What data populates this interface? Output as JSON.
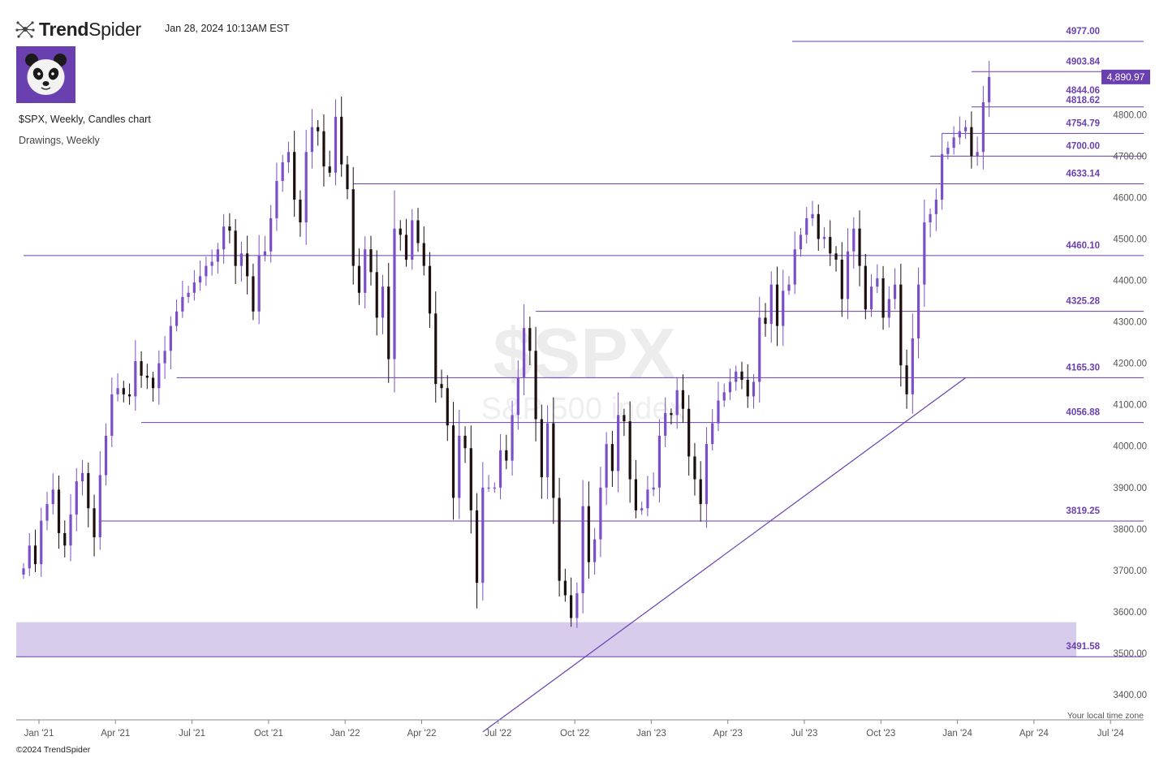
{
  "header": {
    "brand_bold": "Trend",
    "brand_light": "Spider",
    "datetime": "Jan 28, 2024 10:13AM EST",
    "chart_title": "$SPX, Weekly, Candles chart",
    "chart_subtitle": "Drawings, Weekly",
    "watermark_symbol": "$SPX",
    "watermark_name": "S&P 500 index",
    "timezone_note": "Your local time zone",
    "copyright": "©2024 TrendSpider"
  },
  "colors": {
    "accent": "#6a3fb0",
    "bull": "#7b4fc8",
    "bear": "#1e0f0f",
    "zone": "#d8ccec"
  },
  "icons": [
    "trendspider-logo-icon",
    "panda-avatar-icon"
  ],
  "chart_data": {
    "type": "candlestick",
    "timeframe": "Weekly",
    "ylim": [
      3320,
      5010
    ],
    "y_ticks": [
      3400,
      3500,
      3600,
      3700,
      3800,
      3900,
      4000,
      4100,
      4200,
      4300,
      4400,
      4500,
      4600,
      4700,
      4800,
      4900
    ],
    "y_tick_labels": [
      "3400.00",
      "3500.00",
      "3600.00",
      "3700.00",
      "3800.00",
      "3900.00",
      "4000.00",
      "4100.00",
      "4200.00",
      "4300.00",
      "4400.00",
      "4500.00",
      "4600.00",
      "4700.00",
      "4800.00",
      "4900.00"
    ],
    "x_ticks": [
      "Jan '21",
      "Apr '21",
      "Jul '21",
      "Oct '21",
      "Jan '22",
      "Apr '22",
      "Jul '22",
      "Oct '22",
      "Jan '23",
      "Apr '23",
      "Jul '23",
      "Oct '23",
      "Jan '24",
      "Apr '24",
      "Jul '24"
    ],
    "x_tick_weeks": [
      1,
      14,
      27,
      40,
      53,
      66,
      79,
      92,
      105,
      118,
      131,
      144,
      157,
      170,
      183
    ],
    "last_price": 4890.97,
    "last_price_label": "4,890.97",
    "closes": [
      3705,
      3760,
      3715,
      3820,
      3860,
      3895,
      3790,
      3760,
      3835,
      3915,
      3935,
      3850,
      3780,
      3930,
      4025,
      4125,
      4140,
      4125,
      4120,
      4205,
      4170,
      4165,
      4140,
      4200,
      4230,
      4290,
      4325,
      4360,
      4370,
      4395,
      4410,
      4435,
      4445,
      4475,
      4530,
      4520,
      4435,
      4465,
      4410,
      4325,
      4460,
      4470,
      4550,
      4640,
      4685,
      4710,
      4595,
      4540,
      4710,
      4770,
      4760,
      4675,
      4660,
      4795,
      4680,
      4620,
      4435,
      4370,
      4475,
      4420,
      4310,
      4385,
      4210,
      4525,
      4510,
      4450,
      4545,
      4490,
      4435,
      4320,
      4150,
      4140,
      4050,
      3875,
      4025,
      3995,
      3845,
      3670,
      3900,
      3900,
      3900,
      3990,
      3965,
      4075,
      4165,
      4285,
      4230,
      4065,
      3925,
      4055,
      3875,
      3675,
      3640,
      3585,
      3645,
      3855,
      3720,
      3775,
      3900,
      4005,
      3940,
      4075,
      4060,
      3920,
      3845,
      3850,
      3895,
      3900,
      4025,
      4080,
      4075,
      4135,
      4090,
      3975,
      3920,
      3860,
      4005,
      4055,
      4110,
      4130,
      4155,
      4180,
      4160,
      4120,
      4155,
      4310,
      4295,
      4390,
      4290,
      4375,
      4390,
      4475,
      4510,
      4550,
      4560,
      4500,
      4505,
      4465,
      4450,
      4355,
      4470,
      4525,
      4435,
      4330,
      4385,
      4405,
      4310,
      4355,
      4390,
      4195,
      4125,
      4260,
      4390,
      4540,
      4560,
      4595,
      4705,
      4720,
      4745,
      4760,
      4770,
      4700,
      4710,
      4830,
      4890.97
    ]
  },
  "levels": [
    {
      "label": "4977.00"
    },
    {
      "label": "4903.84"
    },
    {
      "label": "4844.06"
    },
    {
      "label": "4818.62"
    },
    {
      "label": "4754.79"
    },
    {
      "label": "4700.00"
    },
    {
      "label": "4633.14"
    },
    {
      "label": "4460.10"
    },
    {
      "label": "4325.28"
    },
    {
      "label": "4165.30"
    },
    {
      "label": "4056.88"
    },
    {
      "label": "3819.25"
    },
    {
      "label": "3491.58"
    }
  ],
  "zone": {
    "low": 3491.58,
    "high": 3575
  },
  "trendline": {
    "from_week": 79,
    "from_price": 3310,
    "to_week": 161,
    "to_price": 4165
  }
}
